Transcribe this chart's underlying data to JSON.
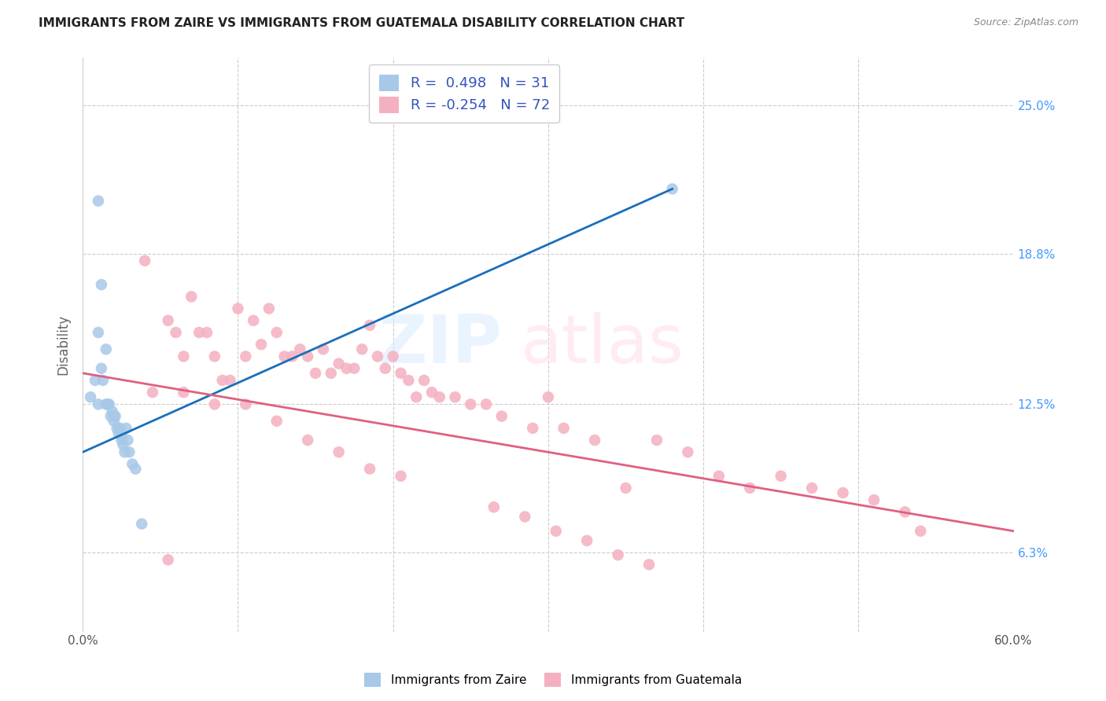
{
  "title": "IMMIGRANTS FROM ZAIRE VS IMMIGRANTS FROM GUATEMALA DISABILITY CORRELATION CHART",
  "source": "Source: ZipAtlas.com",
  "ylabel": "Disability",
  "yticks": [
    "6.3%",
    "12.5%",
    "18.8%",
    "25.0%"
  ],
  "ytick_vals": [
    0.063,
    0.125,
    0.188,
    0.25
  ],
  "xlim": [
    0.0,
    0.6
  ],
  "ylim": [
    0.03,
    0.27
  ],
  "zaire_color": "#a8c8e8",
  "guatemala_color": "#f4b0c0",
  "zaire_line_color": "#1a6fba",
  "guatemala_line_color": "#e06080",
  "zaire_scatter_x": [
    0.005,
    0.008,
    0.01,
    0.01,
    0.012,
    0.013,
    0.015,
    0.015,
    0.016,
    0.017,
    0.018,
    0.019,
    0.02,
    0.02,
    0.021,
    0.022,
    0.023,
    0.024,
    0.025,
    0.025,
    0.026,
    0.027,
    0.028,
    0.029,
    0.03,
    0.032,
    0.034,
    0.038,
    0.01,
    0.012,
    0.38
  ],
  "zaire_scatter_y": [
    0.128,
    0.135,
    0.155,
    0.125,
    0.14,
    0.135,
    0.125,
    0.148,
    0.125,
    0.125,
    0.12,
    0.122,
    0.12,
    0.118,
    0.12,
    0.115,
    0.113,
    0.115,
    0.112,
    0.11,
    0.108,
    0.105,
    0.115,
    0.11,
    0.105,
    0.1,
    0.098,
    0.075,
    0.21,
    0.175,
    0.215
  ],
  "guatemala_scatter_x": [
    0.04,
    0.055,
    0.06,
    0.065,
    0.07,
    0.075,
    0.08,
    0.085,
    0.09,
    0.095,
    0.1,
    0.105,
    0.11,
    0.115,
    0.12,
    0.125,
    0.13,
    0.135,
    0.14,
    0.145,
    0.15,
    0.155,
    0.16,
    0.165,
    0.17,
    0.175,
    0.18,
    0.185,
    0.19,
    0.195,
    0.2,
    0.205,
    0.21,
    0.215,
    0.22,
    0.225,
    0.23,
    0.24,
    0.25,
    0.26,
    0.27,
    0.29,
    0.3,
    0.31,
    0.33,
    0.35,
    0.37,
    0.39,
    0.41,
    0.43,
    0.45,
    0.47,
    0.49,
    0.51,
    0.53,
    0.045,
    0.065,
    0.085,
    0.105,
    0.125,
    0.145,
    0.165,
    0.185,
    0.205,
    0.265,
    0.285,
    0.305,
    0.325,
    0.345,
    0.365,
    0.54,
    0.055
  ],
  "guatemala_scatter_y": [
    0.185,
    0.16,
    0.155,
    0.145,
    0.17,
    0.155,
    0.155,
    0.145,
    0.135,
    0.135,
    0.165,
    0.145,
    0.16,
    0.15,
    0.165,
    0.155,
    0.145,
    0.145,
    0.148,
    0.145,
    0.138,
    0.148,
    0.138,
    0.142,
    0.14,
    0.14,
    0.148,
    0.158,
    0.145,
    0.14,
    0.145,
    0.138,
    0.135,
    0.128,
    0.135,
    0.13,
    0.128,
    0.128,
    0.125,
    0.125,
    0.12,
    0.115,
    0.128,
    0.115,
    0.11,
    0.09,
    0.11,
    0.105,
    0.095,
    0.09,
    0.095,
    0.09,
    0.088,
    0.085,
    0.08,
    0.13,
    0.13,
    0.125,
    0.125,
    0.118,
    0.11,
    0.105,
    0.098,
    0.095,
    0.082,
    0.078,
    0.072,
    0.068,
    0.062,
    0.058,
    0.072,
    0.06
  ],
  "zaire_line_x": [
    0.0,
    0.38
  ],
  "zaire_line_y": [
    0.105,
    0.215
  ],
  "guatemala_line_x": [
    0.0,
    0.6
  ],
  "guatemala_line_y": [
    0.138,
    0.072
  ]
}
